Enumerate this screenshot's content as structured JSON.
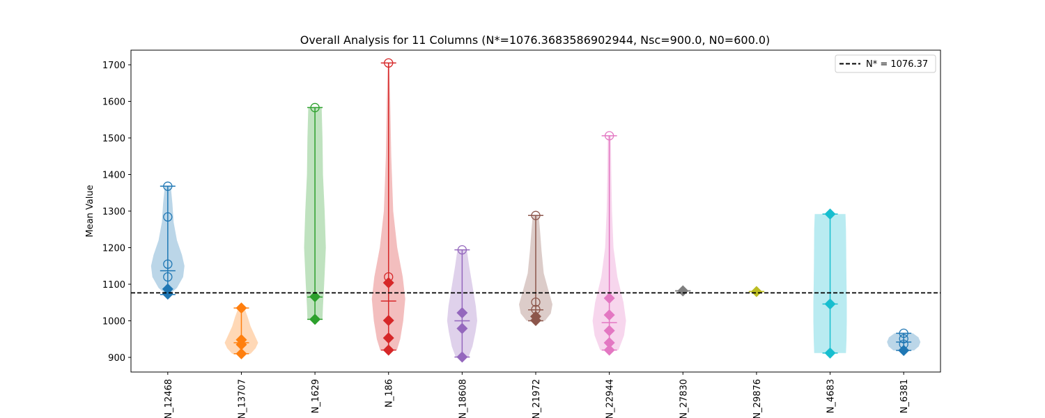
{
  "chart_data": {
    "type": "violin",
    "title": "Overall Analysis for 11 Columns (N*=1076.3683586902944, Nsc=900.0, N0=600.0)",
    "xlabel": "",
    "ylabel": "Mean Value",
    "ylim": [
      860,
      1740
    ],
    "yticks": [
      900,
      1000,
      1100,
      1200,
      1300,
      1400,
      1500,
      1600,
      1700
    ],
    "grid": false,
    "legend": {
      "location": "top-right",
      "entries": [
        "N* = 1076.37"
      ]
    },
    "reference_line": {
      "label": "N* = 1076.37",
      "value": 1076.37,
      "style": "dashed",
      "color": "#000000"
    },
    "categories": [
      "N_12468",
      "N_13707",
      "N_1629",
      "N_186",
      "N_18608",
      "N_21972",
      "N_22944",
      "N_27830",
      "N_29876",
      "N_4683",
      "N_6381"
    ],
    "series": [
      {
        "category": "N_12468",
        "color": "#1f77b4",
        "min": 1072,
        "max": 1368,
        "mean": 1137,
        "circles": [
          1368,
          1284,
          1155,
          1120
        ],
        "diamonds": [
          1087,
          1073
        ],
        "shape": [
          [
            1072,
            0.1
          ],
          [
            1090,
            0.55
          ],
          [
            1120,
            0.92
          ],
          [
            1150,
            1.0
          ],
          [
            1180,
            0.85
          ],
          [
            1220,
            0.55
          ],
          [
            1270,
            0.35
          ],
          [
            1320,
            0.28
          ],
          [
            1368,
            0.18
          ]
        ]
      },
      {
        "category": "N_13707",
        "color": "#ff7f0e",
        "min": 910,
        "max": 1035,
        "mean": 940,
        "circles": [],
        "diamonds": [
          1035,
          948,
          935,
          910
        ],
        "shape": [
          [
            910,
            0.55
          ],
          [
            925,
            0.85
          ],
          [
            940,
            1.0
          ],
          [
            960,
            0.8
          ],
          [
            985,
            0.55
          ],
          [
            1010,
            0.38
          ],
          [
            1035,
            0.18
          ]
        ]
      },
      {
        "category": "N_1629",
        "color": "#2ca02c",
        "min": 1004,
        "max": 1583,
        "mean": 1065,
        "circles": [
          1583
        ],
        "diamonds": [
          1066,
          1004
        ],
        "shape": [
          [
            1004,
            0.45
          ],
          [
            1040,
            0.48
          ],
          [
            1100,
            0.55
          ],
          [
            1200,
            0.65
          ],
          [
            1300,
            0.58
          ],
          [
            1400,
            0.48
          ],
          [
            1500,
            0.45
          ],
          [
            1583,
            0.4
          ]
        ]
      },
      {
        "category": "N_186",
        "color": "#d62728",
        "min": 920,
        "max": 1705,
        "mean": 1054,
        "circles": [
          1705,
          1120
        ],
        "diamonds": [
          1104,
          1001,
          953,
          920
        ],
        "shape": [
          [
            920,
            0.5
          ],
          [
            950,
            0.7
          ],
          [
            1000,
            0.88
          ],
          [
            1060,
            1.0
          ],
          [
            1120,
            0.85
          ],
          [
            1200,
            0.52
          ],
          [
            1300,
            0.28
          ],
          [
            1450,
            0.16
          ],
          [
            1600,
            0.1
          ],
          [
            1705,
            0.04
          ]
        ]
      },
      {
        "category": "N_18608",
        "color": "#9467bd",
        "min": 901,
        "max": 1194,
        "mean": 1000,
        "circles": [
          1194
        ],
        "diamonds": [
          1022,
          979,
          901
        ],
        "shape": [
          [
            901,
            0.38
          ],
          [
            930,
            0.62
          ],
          [
            970,
            0.8
          ],
          [
            1000,
            0.9
          ],
          [
            1040,
            0.82
          ],
          [
            1100,
            0.6
          ],
          [
            1150,
            0.42
          ],
          [
            1194,
            0.28
          ]
        ]
      },
      {
        "category": "N_21972",
        "color": "#8c564b",
        "min": 1000,
        "max": 1288,
        "mean": 1030,
        "circles": [
          1288,
          1051,
          1031
        ],
        "diamonds": [
          1012,
          1001
        ],
        "shape": [
          [
            1000,
            0.55
          ],
          [
            1020,
            0.9
          ],
          [
            1045,
            1.0
          ],
          [
            1080,
            0.78
          ],
          [
            1130,
            0.48
          ],
          [
            1190,
            0.35
          ],
          [
            1250,
            0.25
          ],
          [
            1288,
            0.18
          ]
        ]
      },
      {
        "category": "N_22944",
        "color": "#e377c2",
        "min": 920,
        "max": 1506,
        "mean": 995,
        "circles": [
          1506
        ],
        "diamonds": [
          1062,
          1016,
          973,
          940,
          920
        ],
        "shape": [
          [
            920,
            0.55
          ],
          [
            960,
            0.88
          ],
          [
            1000,
            1.0
          ],
          [
            1050,
            0.85
          ],
          [
            1120,
            0.48
          ],
          [
            1200,
            0.25
          ],
          [
            1300,
            0.16
          ],
          [
            1400,
            0.12
          ],
          [
            1506,
            0.09
          ]
        ]
      },
      {
        "category": "N_27830",
        "color": "#7f7f7f",
        "min": 1082,
        "max": 1082,
        "mean": 1082,
        "circles": [],
        "diamonds": [
          1082
        ],
        "shape": []
      },
      {
        "category": "N_29876",
        "color": "#bcbd22",
        "min": 1080,
        "max": 1080,
        "mean": 1080,
        "circles": [],
        "diamonds": [
          1080
        ],
        "shape": []
      },
      {
        "category": "N_4683",
        "color": "#17becf",
        "min": 912,
        "max": 1292,
        "mean": 1046,
        "circles": [],
        "diamonds": [
          1292,
          1046,
          912
        ],
        "shape": [
          [
            912,
            0.95
          ],
          [
            950,
            0.98
          ],
          [
            1000,
            1.0
          ],
          [
            1050,
            1.0
          ],
          [
            1100,
            0.98
          ],
          [
            1150,
            0.97
          ],
          [
            1200,
            0.96
          ],
          [
            1250,
            0.95
          ],
          [
            1292,
            0.92
          ]
        ]
      },
      {
        "category": "N_6381",
        "color": "#1f77b4",
        "min": 919,
        "max": 966,
        "mean": 942,
        "circles": [
          966,
          951,
          936
        ],
        "diamonds": [
          919
        ],
        "shape": [
          [
            919,
            0.62
          ],
          [
            930,
            0.9
          ],
          [
            942,
            1.0
          ],
          [
            955,
            0.88
          ],
          [
            966,
            0.55
          ]
        ]
      }
    ]
  }
}
